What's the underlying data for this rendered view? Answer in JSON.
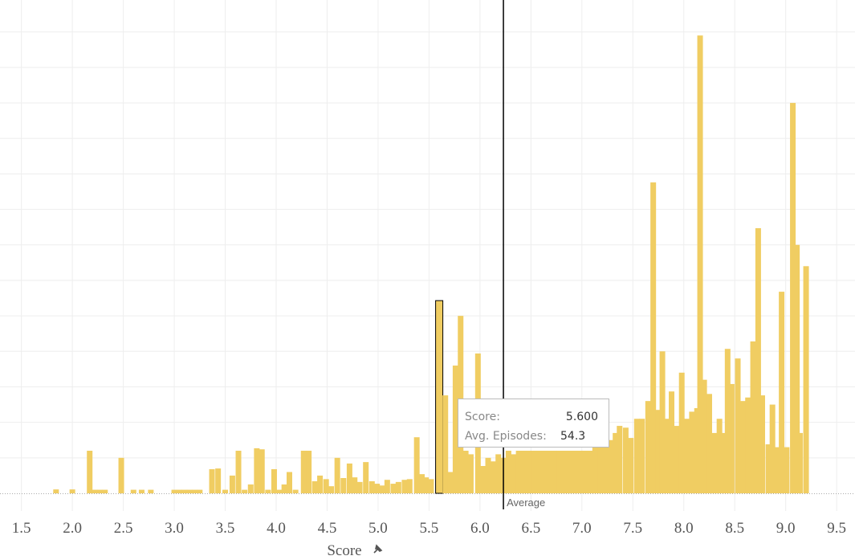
{
  "chart_data": {
    "type": "bar",
    "x_label": "Score",
    "color": "#f0cd62",
    "xlim": [
      1.29,
      9.68
    ],
    "ylim": [
      0,
      139
    ],
    "xticks": [
      1.5,
      {
        "value": 2,
        "label": "2.0"
      },
      2.5,
      {
        "value": 3,
        "label": "3.0"
      },
      3.5,
      {
        "value": 4,
        "label": "4.0"
      },
      4.5,
      {
        "value": 5,
        "label": "5.0"
      },
      5.5,
      {
        "value": 6,
        "label": "6.0"
      },
      6.5,
      {
        "value": 7,
        "label": "7.0"
      },
      7.5,
      {
        "value": 8,
        "label": "8.0"
      },
      8.5,
      {
        "value": 9,
        "label": "9.0"
      },
      9.5
    ],
    "ygrid": [
      10,
      20,
      30,
      40,
      50,
      60,
      70,
      80,
      90,
      100,
      110,
      120,
      130
    ],
    "grid": true,
    "x": [
      1.84,
      2.0,
      2.17,
      2.22,
      2.27,
      2.32,
      2.48,
      2.6,
      2.68,
      2.77,
      3.0,
      3.05,
      3.1,
      3.15,
      3.2,
      3.25,
      3.37,
      3.43,
      3.5,
      3.57,
      3.63,
      3.69,
      3.75,
      3.81,
      3.86,
      3.92,
      3.98,
      4.03,
      4.08,
      4.13,
      4.19,
      4.27,
      4.32,
      4.38,
      4.43,
      4.49,
      4.54,
      4.6,
      4.66,
      4.72,
      4.77,
      4.82,
      4.88,
      4.94,
      4.99,
      5.04,
      5.09,
      5.15,
      5.2,
      5.26,
      5.31,
      5.38,
      5.43,
      5.47,
      5.52,
      5.6,
      5.66,
      5.71,
      5.76,
      5.81,
      5.86,
      5.91,
      5.98,
      6.03,
      6.08,
      6.13,
      6.18,
      6.23,
      6.28,
      6.33,
      6.38,
      6.43,
      6.48,
      6.53,
      6.58,
      6.63,
      6.68,
      6.73,
      6.78,
      6.83,
      6.88,
      6.93,
      6.98,
      7.03,
      7.08,
      7.13,
      7.18,
      7.23,
      7.28,
      7.33,
      7.37,
      7.43,
      7.48,
      7.54,
      7.59,
      7.65,
      7.7,
      7.75,
      7.79,
      7.84,
      7.88,
      7.93,
      7.98,
      8.03,
      8.08,
      8.13,
      8.16,
      8.2,
      8.25,
      8.3,
      8.35,
      8.39,
      8.43,
      8.47,
      8.53,
      8.58,
      8.63,
      8.68,
      8.73,
      8.77,
      8.83,
      8.87,
      8.91,
      8.96,
      9.01,
      9.07,
      9.11,
      9.14,
      9.2
    ],
    "values": [
      1.1,
      1.1,
      12,
      1,
      1,
      1,
      10,
      1,
      1,
      1,
      1,
      1,
      1,
      1,
      1,
      1,
      6.8,
      7,
      1,
      5,
      12,
      1,
      2.5,
      12.7,
      12.4,
      1,
      6.8,
      1,
      2.5,
      6,
      1,
      12,
      12,
      3.4,
      5,
      4,
      2,
      10,
      4.3,
      8.4,
      4.5,
      3.2,
      8.8,
      3.4,
      2.7,
      2.2,
      3.8,
      2.7,
      3.2,
      3.8,
      4,
      15.8,
      5.4,
      4.5,
      4,
      54.3,
      27.6,
      6,
      36,
      50,
      12,
      11,
      39.4,
      7.7,
      10,
      9,
      11,
      10,
      12,
      11,
      12,
      12,
      12,
      12,
      12,
      12,
      12,
      12,
      12,
      12,
      12,
      12,
      12,
      12,
      12,
      13,
      15,
      16.7,
      15,
      17,
      19,
      18.5,
      15.6,
      21,
      21,
      26,
      87.6,
      23.5,
      40,
      21,
      28.7,
      19,
      34,
      21,
      23,
      24,
      129,
      32,
      28,
      17,
      21,
      17,
      40.7,
      30.8,
      38,
      26,
      27,
      42.8,
      74.7,
      27.6,
      13.8,
      25,
      13,
      56.8,
      13,
      110,
      70,
      17,
      64
    ],
    "highlight": 55,
    "average": {
      "value": 6.23,
      "label": "Average"
    },
    "tooltip": {
      "score_label": "Score:",
      "score": "5.600",
      "episodes_label": "Avg. Episodes:",
      "episodes": "54.3"
    }
  }
}
